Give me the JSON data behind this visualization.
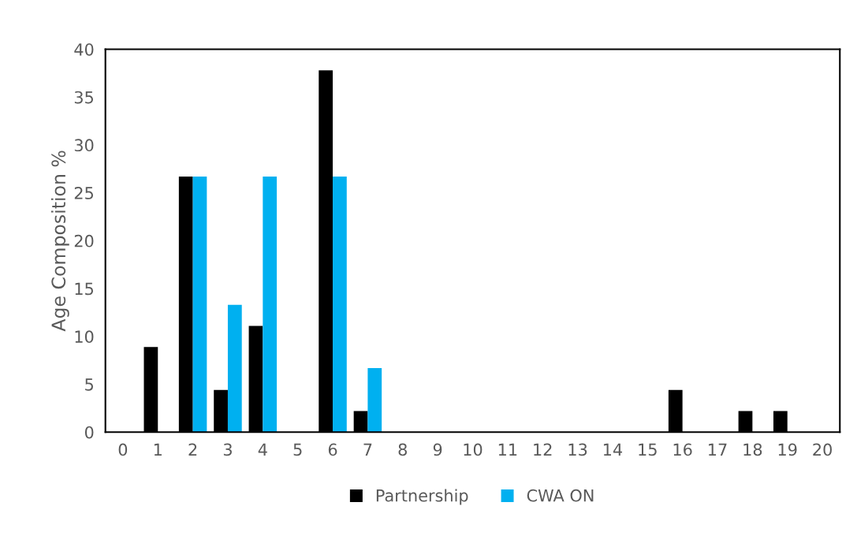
{
  "chart_data": {
    "type": "bar",
    "ylabel": "Age Composition %",
    "categories": [
      "0",
      "1",
      "2",
      "3",
      "4",
      "5",
      "6",
      "7",
      "8",
      "9",
      "10",
      "11",
      "12",
      "13",
      "14",
      "15",
      "16",
      "17",
      "18",
      "19",
      "20"
    ],
    "series": [
      {
        "name": "Partnership",
        "color": "#000000",
        "values": [
          0,
          8.9,
          26.7,
          4.4,
          11.1,
          0,
          37.8,
          2.2,
          0,
          0,
          0,
          0,
          0,
          0,
          0,
          0,
          4.4,
          0,
          2.2,
          2.2,
          0
        ]
      },
      {
        "name": "CWA ON",
        "color": "#00b0f0",
        "values": [
          0,
          0,
          26.7,
          13.3,
          26.7,
          0,
          26.7,
          6.7,
          0,
          0,
          0,
          0,
          0,
          0,
          0,
          0,
          0,
          0,
          0,
          0,
          0
        ]
      }
    ],
    "ylim": [
      0,
      40
    ],
    "yticks": [
      0,
      5,
      10,
      15,
      20,
      25,
      30,
      35,
      40
    ],
    "grid": false,
    "legend": "bottom"
  }
}
